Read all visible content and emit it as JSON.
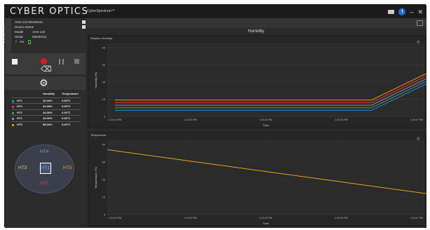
{
  "app": {
    "brand": "CYBER OPTICS",
    "brand_sub": "CyberSpectrum™",
    "icons": [
      "folder-icon",
      "info-icon",
      "minimize-icon",
      "close-icon"
    ]
  },
  "sidebar": {
    "tab_label": "Device Info",
    "device": {
      "row1": "AHS-123 M0400111",
      "row2_k": "Device Name",
      "row3_k": "Model",
      "row3_v": "AHS-123",
      "row4_k": "Serial",
      "row4_v": "M0400111",
      "rate": "ms"
    },
    "table": {
      "headers": [
        "",
        "Humidity",
        "Temperature"
      ],
      "rows": [
        {
          "ch": "HT1",
          "hum": "10.00%",
          "temp": "0.00°C",
          "color": "#1e88e5"
        },
        {
          "ch": "HT2",
          "hum": "22.00%",
          "temp": "0.00°C",
          "color": "#e53935"
        },
        {
          "ch": "HT3",
          "hum": "34.00%",
          "temp": "0.00°C",
          "color": "#43a047"
        },
        {
          "ch": "HT4",
          "hum": "16.00%",
          "temp": "0.00°C",
          "color": "#8e7cc3"
        },
        {
          "ch": "HT5",
          "hum": "58.00%",
          "temp": "0.00°C",
          "color": "#fb8c00"
        }
      ]
    },
    "ring": {
      "top": "HT4",
      "left": "HT3",
      "center": "HT1",
      "right": "HT5",
      "bottom": "HT2"
    }
  },
  "main": {
    "title": "Humidity"
  },
  "chart_data": [
    {
      "type": "line",
      "title": "Relative Humidity",
      "xlabel": "Time",
      "ylabel": "Humidity (%)",
      "ylim": [
        0,
        42
      ],
      "yticks": [
        0,
        10,
        20,
        30,
        40
      ],
      "x": [
        "1:24:23 PM",
        "1:24:24 PM",
        "1:24:25 PM",
        "1:24:26 PM",
        "1:24:27 PM"
      ],
      "series": [
        {
          "color": "#fb8c00",
          "points": [
            [
              0,
              9.5
            ],
            [
              3.4,
              9.5
            ],
            [
              4.7,
              37
            ]
          ]
        },
        {
          "color": "#e53935",
          "points": [
            [
              0,
              8
            ],
            [
              3.4,
              8
            ],
            [
              4.7,
              35.5
            ]
          ]
        },
        {
          "color": "#8e7cc3",
          "points": [
            [
              0,
              6.5
            ],
            [
              3.4,
              6.5
            ],
            [
              4.7,
              34
            ]
          ]
        },
        {
          "color": "#43a047",
          "points": [
            [
              0,
              5
            ],
            [
              3.4,
              5
            ],
            [
              4.7,
              32.5
            ]
          ]
        },
        {
          "color": "#1e88e5",
          "points": [
            [
              0,
              3.5
            ],
            [
              3.4,
              3.5
            ],
            [
              4.7,
              31
            ]
          ]
        }
      ]
    },
    {
      "type": "line",
      "title": "Temperature",
      "xlabel": "Time",
      "ylabel": "Temperature (°C)",
      "ylim": [
        0,
        42
      ],
      "yticks": [
        0,
        10,
        20,
        30,
        40
      ],
      "x": [
        "1:24:23 PM",
        "1:24:24 PM",
        "1:24:25 PM",
        "1:24:26 PM",
        "1:24:27 PM"
      ],
      "series": [
        {
          "color": "#e8a317",
          "points": [
            [
              -0.1,
              37
            ],
            [
              4.8,
              8
            ]
          ]
        }
      ]
    }
  ]
}
